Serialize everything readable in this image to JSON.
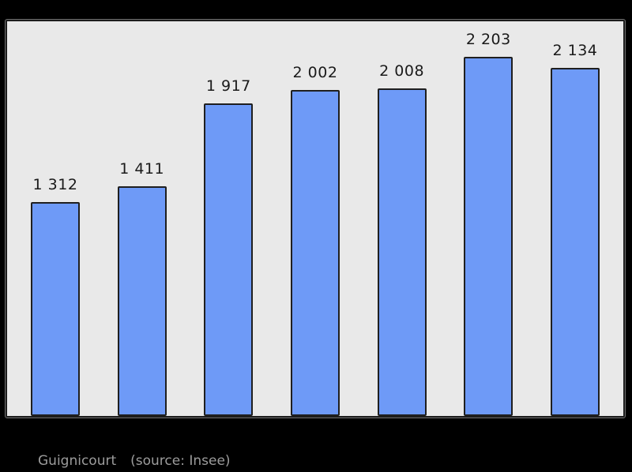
{
  "chart_data": {
    "type": "bar",
    "title": "",
    "values": [
      1312,
      1411,
      1917,
      2002,
      2008,
      2203,
      2134
    ],
    "value_labels": [
      "1 312",
      "1 411",
      "1 917",
      "2 002",
      "2 008",
      "2 203",
      "2 134"
    ],
    "xlabel": "",
    "ylabel": "",
    "ylim": [
      0,
      2420
    ],
    "grid": false,
    "legend": false,
    "bar_count": 7
  },
  "caption": {
    "place": "Guignicourt",
    "source": "(source: Insee)"
  },
  "colors": {
    "outer_background": "#000000",
    "plot_background": "#e9e9e9",
    "frame_border": "#1d1d1d",
    "frame_outline": "#6f6f6f",
    "bar_fill": "#6e9af7",
    "bar_border": "#1f1f1f",
    "value_label": "#1a1a1a",
    "caption_text": "#9c9c9c"
  }
}
